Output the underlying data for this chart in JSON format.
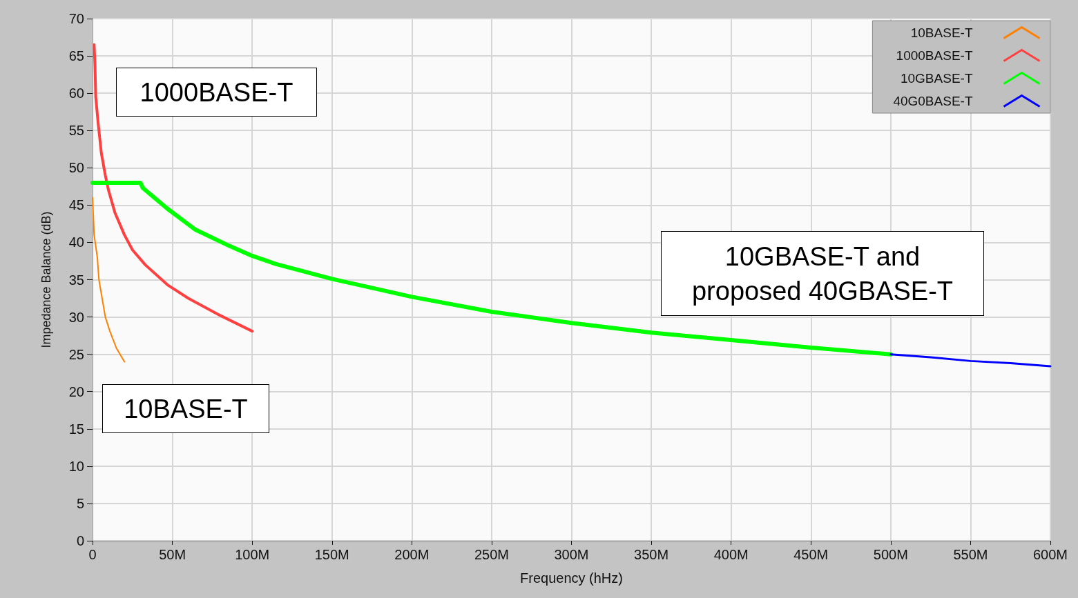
{
  "chart_data": {
    "type": "line",
    "xlabel": "Frequency (hHz)",
    "ylabel": "Impedance Balance (dB)",
    "xlim": [
      0,
      600
    ],
    "xticks": [
      0,
      {
        "value": 50,
        "label": "50M"
      },
      {
        "value": 100,
        "label": "100M"
      },
      {
        "value": 150,
        "label": "150M"
      },
      {
        "value": 200,
        "label": "200M"
      },
      {
        "value": 250,
        "label": "250M"
      },
      {
        "value": 300,
        "label": "300M"
      },
      {
        "value": 350,
        "label": "350M"
      },
      {
        "value": 400,
        "label": "400M"
      },
      {
        "value": 450,
        "label": "450M"
      },
      {
        "value": 500,
        "label": "500M"
      },
      {
        "value": 550,
        "label": "550M"
      },
      {
        "value": 600,
        "label": "600M"
      }
    ],
    "ylim": [
      0,
      70
    ],
    "yticks": [
      0,
      5,
      10,
      15,
      20,
      25,
      30,
      35,
      40,
      45,
      50,
      55,
      60,
      65,
      70
    ],
    "grid": true,
    "legend": "top right",
    "marker": "none",
    "line_style": "solid",
    "series": [
      {
        "name": "10BASE-T",
        "color": "#ff8000",
        "x": [
          0,
          1,
          3,
          4,
          8,
          11,
          15,
          20
        ],
        "values": [
          46,
          41,
          38,
          35,
          30,
          28,
          25.8,
          24
        ]
      },
      {
        "name": "1000BASE-T",
        "color": "#ff4040",
        "x": [
          1,
          1.5,
          2,
          3.5,
          5.5,
          8,
          10,
          14,
          20,
          25,
          33,
          47,
          60,
          80,
          100
        ],
        "values": [
          66.5,
          64,
          59.5,
          56,
          52,
          49,
          47,
          44,
          41,
          39,
          37,
          34.3,
          32.5,
          30.2,
          28.1
        ]
      },
      {
        "name": "10GBASE-T",
        "color": "#00ff00",
        "x": [
          0,
          30,
          31.5,
          47,
          64.5,
          86,
          100,
          115,
          150,
          200,
          250,
          300,
          350,
          400,
          450,
          500
        ],
        "values": [
          48,
          48,
          47.3,
          44.5,
          41.7,
          39.5,
          38.2,
          37.1,
          35.1,
          32.7,
          30.7,
          29.2,
          27.9,
          26.9,
          25.9,
          25
        ]
      },
      {
        "name": "40G0BASE-T",
        "color": "#0000ff",
        "x": [
          500,
          525,
          550,
          575,
          600
        ],
        "values": [
          25,
          24.6,
          24.1,
          23.8,
          23.4
        ]
      }
    ],
    "annotations": [
      "1000BASE-T",
      "10BASE-T",
      "10GBASE-T and\nproposed 40GBASE-T"
    ]
  }
}
